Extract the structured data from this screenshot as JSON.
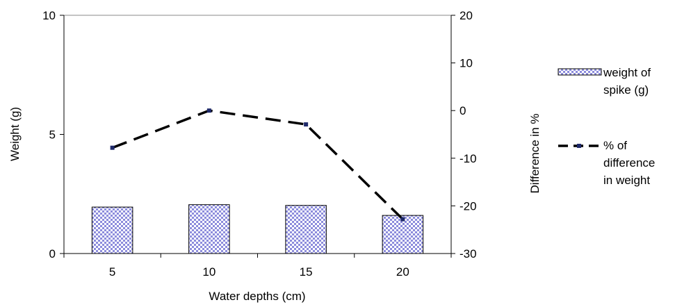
{
  "chart_data": {
    "type": "bar",
    "categories": [
      "5",
      "10",
      "15",
      "20"
    ],
    "xlabel": "Water depths (cm)",
    "ylabel": "Weight (g)",
    "y2label": "Difference in %",
    "ylim": [
      0,
      10
    ],
    "y2lim": [
      -30,
      20
    ],
    "yticks": [
      "0",
      "5",
      "10"
    ],
    "y2ticks": [
      "-30",
      "-20",
      "-10",
      "0",
      "10",
      "20"
    ],
    "grid": false,
    "legend_position": "right",
    "series": [
      {
        "name": "weight of spike (g)",
        "legend_lines": [
          "weight of",
          "spike (g)"
        ],
        "type": "bar",
        "axis": "left",
        "values": [
          1.95,
          2.05,
          2.02,
          1.6
        ],
        "color": "#8c8cdc"
      },
      {
        "name": "% of difference in weight",
        "legend_lines": [
          "% of",
          "difference",
          "in weight"
        ],
        "type": "line",
        "axis": "right",
        "style": "dashed",
        "values": [
          -7.8,
          0,
          -2.9,
          -22.8
        ],
        "color": "#000000",
        "marker_color": "#1f2a6b"
      }
    ]
  }
}
